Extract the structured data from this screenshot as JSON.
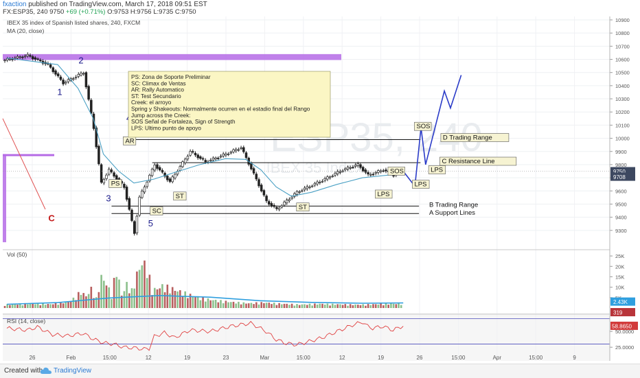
{
  "header": {
    "author": "fxaction",
    "published_text": "published on TradingView.com, March 17, 2018 09:51 EST",
    "symbol": "FX:ESP35, 240",
    "last": "9750",
    "change": "+69 (+0.71%)",
    "ohlc": "O:9753 H:9756 L:9735 C:9750"
  },
  "legend": {
    "title": "IBEX 35 index of Spanish listed shares, 240, FXCM",
    "ma": "MA (20, close)",
    "vol": "Vol (50)",
    "rsi": "RSI (14, close)"
  },
  "watermark": {
    "big": "ESP35, 240",
    "small": "IBEX 35 Index"
  },
  "footer": {
    "created": "Created with",
    "brand": "TradingView"
  },
  "colors": {
    "up": "#8cc08c",
    "down": "#b85f5f",
    "ma": "#4aa0c4",
    "vol_ma": "#2f9fdf",
    "rsi": "#e04040",
    "channel": "#1a1a9a",
    "zone": "#b56be6",
    "note_bg": "#fbf6c4",
    "tag_bg": "#f6f3d2",
    "label_red": "#c41818"
  },
  "chart_data": [
    {
      "type": "candlestick",
      "title": "IBEX 35 index of Spanish listed shares, 240, FXCM",
      "ylim": [
        9200,
        10900
      ],
      "y_ticks": [
        "10900",
        "10800",
        "10700",
        "10600",
        "10500",
        "10400",
        "10300",
        "10200",
        "10100",
        "10000",
        "9900",
        "9800",
        "9700",
        "9600",
        "9500",
        "9400",
        "9300"
      ],
      "x_ticks": [
        "26",
        "Feb",
        "15:00",
        "12",
        "19",
        "23",
        "Mar",
        "15:00",
        "12",
        "19",
        "26",
        "15:00",
        "Apr",
        "15:00",
        "9"
      ],
      "price_badges": [
        {
          "label": "9750",
          "value": 9750
        },
        {
          "label": "9708",
          "value": 9708
        }
      ],
      "path": [
        [
          0,
          10590
        ],
        [
          5,
          10630
        ],
        [
          9,
          10560
        ],
        [
          12,
          10420
        ],
        [
          16,
          10500
        ],
        [
          18,
          10080
        ],
        [
          19.5,
          9660
        ],
        [
          21,
          9760
        ],
        [
          24,
          9630
        ],
        [
          26,
          9280
        ],
        [
          27,
          9550
        ],
        [
          30,
          9800
        ],
        [
          33,
          9670
        ],
        [
          37,
          9900
        ],
        [
          40,
          9820
        ],
        [
          44,
          9880
        ],
        [
          47,
          9930
        ],
        [
          49,
          9770
        ],
        [
          52,
          9520
        ],
        [
          54,
          9460
        ],
        [
          58,
          9590
        ],
        [
          63,
          9680
        ],
        [
          67,
          9760
        ],
        [
          70,
          9800
        ],
        [
          72,
          9720
        ],
        [
          75,
          9760
        ],
        [
          77,
          9720
        ],
        [
          78,
          9750
        ]
      ],
      "ma_path": [
        [
          0,
          10610
        ],
        [
          10,
          10560
        ],
        [
          14,
          10380
        ],
        [
          17,
          10150
        ],
        [
          19,
          9880
        ],
        [
          22,
          9750
        ],
        [
          25,
          9660
        ],
        [
          29,
          9690
        ],
        [
          33,
          9740
        ],
        [
          38,
          9800
        ],
        [
          43,
          9845
        ],
        [
          47,
          9840
        ],
        [
          50,
          9760
        ],
        [
          53,
          9630
        ],
        [
          56,
          9560
        ],
        [
          60,
          9590
        ],
        [
          65,
          9650
        ],
        [
          70,
          9700
        ],
        [
          75,
          9720
        ],
        [
          78,
          9730
        ]
      ],
      "annotations": [
        {
          "text": "PS",
          "bar": 20.5,
          "price": 9640,
          "kind": "tag"
        },
        {
          "text": "AR",
          "bar": 23.3,
          "price": 9965,
          "kind": "tag"
        },
        {
          "text": "SC",
          "bar": 28.6,
          "price": 9432,
          "kind": "tag"
        },
        {
          "text": "ST",
          "bar": 33.2,
          "price": 9545,
          "kind": "tag"
        },
        {
          "text": "ST",
          "bar": 57.4,
          "price": 9462,
          "kind": "tag"
        },
        {
          "text": "LPS",
          "bar": 72.9,
          "price": 9560,
          "kind": "tag"
        },
        {
          "text": "SOS",
          "bar": 75.4,
          "price": 9735,
          "kind": "tag"
        },
        {
          "text": "LPS",
          "bar": 80.2,
          "price": 9635,
          "kind": "tag"
        },
        {
          "text": "SOS",
          "bar": 80.6,
          "price": 10075,
          "kind": "tag"
        },
        {
          "text": "LPS",
          "bar": 83.4,
          "price": 9745,
          "kind": "tag"
        },
        {
          "text": "D Trading Range",
          "bar": 85.8,
          "price": 9990,
          "kind": "tag"
        },
        {
          "text": "C Resistance Line",
          "bar": 85.6,
          "price": 9810,
          "kind": "tag"
        },
        {
          "text": "B Trading Range",
          "bar": 83.1,
          "price": 9480,
          "kind": "text"
        },
        {
          "text": "A Support Lines",
          "bar": 83.1,
          "price": 9420,
          "kind": "text"
        },
        {
          "text": "1",
          "bar": 10.4,
          "price": 10330,
          "kind": "wave"
        },
        {
          "text": "2",
          "bar": 14.6,
          "price": 10570,
          "kind": "wave"
        },
        {
          "text": "3",
          "bar": 20.0,
          "price": 9520,
          "kind": "wave"
        },
        {
          "text": "4",
          "bar": 24.0,
          "price": 10130,
          "kind": "wave"
        },
        {
          "text": "5",
          "bar": 28.3,
          "price": 9330,
          "kind": "wave"
        },
        {
          "text": "C",
          "bar": 8.8,
          "price": 9370,
          "kind": "wave_red"
        }
      ],
      "levels": [
        {
          "name": "D",
          "from_bar": 23.7,
          "to_bar": 81.4,
          "price": 9990
        },
        {
          "name": "C",
          "from_bar": 28.6,
          "to_bar": 81.4,
          "price": 9815
        },
        {
          "name": "B",
          "from_bar": 20.6,
          "to_bar": 81.1,
          "price": 9485
        },
        {
          "name": "A",
          "from_bar": 20.6,
          "to_bar": 81.1,
          "price": 9428
        }
      ],
      "projection": [
        [
          78,
          9750
        ],
        [
          80.3,
          9635
        ],
        [
          81.5,
          10080
        ],
        [
          82.4,
          9800
        ],
        [
          86.1,
          10360
        ],
        [
          87.3,
          10230
        ],
        [
          89.4,
          10480
        ]
      ],
      "notes_box": {
        "lines": [
          "PS: Zona de Soporte Preliminar",
          "SC: Climax de Ventas",
          "AR: Rally Automatico",
          "ST: Test Secundario",
          "Creek: el arroyo",
          "Spring y Shakeouts: Normalmente ocurren en el estadio final del Rango",
          "Jump across the Creek:",
          "SOS Señal de Fortaleza, Sign of Strength",
          "LPS: Ultimo punto de apoyo"
        ]
      }
    },
    {
      "type": "bar",
      "title": "Vol (50)",
      "ylim": [
        0,
        28000
      ],
      "y_ticks": [
        "25K",
        "20K",
        "15K",
        "10K",
        "5K"
      ],
      "badges": [
        {
          "label": "2.43K",
          "value": 2430
        },
        {
          "label": "319",
          "value": 319
        }
      ],
      "volume_peaks": [
        [
          0,
          1800
        ],
        [
          5,
          2500
        ],
        [
          9,
          2100
        ],
        [
          13,
          3800
        ],
        [
          15,
          9000
        ],
        [
          16,
          6500
        ],
        [
          17,
          10500
        ],
        [
          18,
          5200
        ],
        [
          19,
          17000
        ],
        [
          20,
          13500
        ],
        [
          21,
          7000
        ],
        [
          22,
          22000
        ],
        [
          23,
          7000
        ],
        [
          24,
          13000
        ],
        [
          25,
          9500
        ],
        [
          26,
          18500
        ],
        [
          27,
          25000
        ],
        [
          28,
          22500
        ],
        [
          29,
          9500
        ],
        [
          31,
          12000
        ],
        [
          33,
          10500
        ],
        [
          36,
          7500
        ],
        [
          39,
          5200
        ],
        [
          42,
          4000
        ],
        [
          45,
          3200
        ],
        [
          48,
          2600
        ],
        [
          51,
          3000
        ],
        [
          54,
          2400
        ],
        [
          58,
          1900
        ],
        [
          62,
          2300
        ],
        [
          66,
          2000
        ],
        [
          70,
          1800
        ],
        [
          74,
          2200
        ],
        [
          78,
          2430
        ]
      ],
      "ma_path": [
        [
          0,
          1800
        ],
        [
          10,
          2600
        ],
        [
          20,
          4800
        ],
        [
          30,
          6000
        ],
        [
          40,
          5200
        ],
        [
          50,
          3500
        ],
        [
          60,
          2700
        ],
        [
          70,
          2300
        ],
        [
          78,
          2430
        ]
      ]
    },
    {
      "type": "line",
      "title": "RSI (14, close)",
      "ylim": [
        10,
        75
      ],
      "y_ticks": [
        "50.0000",
        "25.0000"
      ],
      "reference_lines": [
        70,
        30
      ],
      "badges": [
        {
          "label": "58.8650",
          "value": 58.865
        }
      ],
      "path": [
        [
          0,
          55
        ],
        [
          4,
          52
        ],
        [
          6,
          57
        ],
        [
          9,
          45
        ],
        [
          12,
          43
        ],
        [
          15,
          47
        ],
        [
          17,
          38
        ],
        [
          19,
          32
        ],
        [
          21,
          30
        ],
        [
          23,
          25
        ],
        [
          25,
          24
        ],
        [
          27,
          22
        ],
        [
          28,
          23
        ],
        [
          29,
          42
        ],
        [
          31,
          48
        ],
        [
          33,
          40
        ],
        [
          36,
          52
        ],
        [
          40,
          50
        ],
        [
          44,
          58
        ],
        [
          48,
          63
        ],
        [
          51,
          50
        ],
        [
          53,
          37
        ],
        [
          55,
          31
        ],
        [
          57,
          29
        ],
        [
          59,
          33
        ],
        [
          62,
          40
        ],
        [
          65,
          50
        ],
        [
          68,
          60
        ],
        [
          70,
          65
        ],
        [
          71,
          58
        ],
        [
          72,
          55
        ],
        [
          74,
          58
        ],
        [
          76,
          52
        ],
        [
          78,
          58.865
        ]
      ]
    }
  ]
}
